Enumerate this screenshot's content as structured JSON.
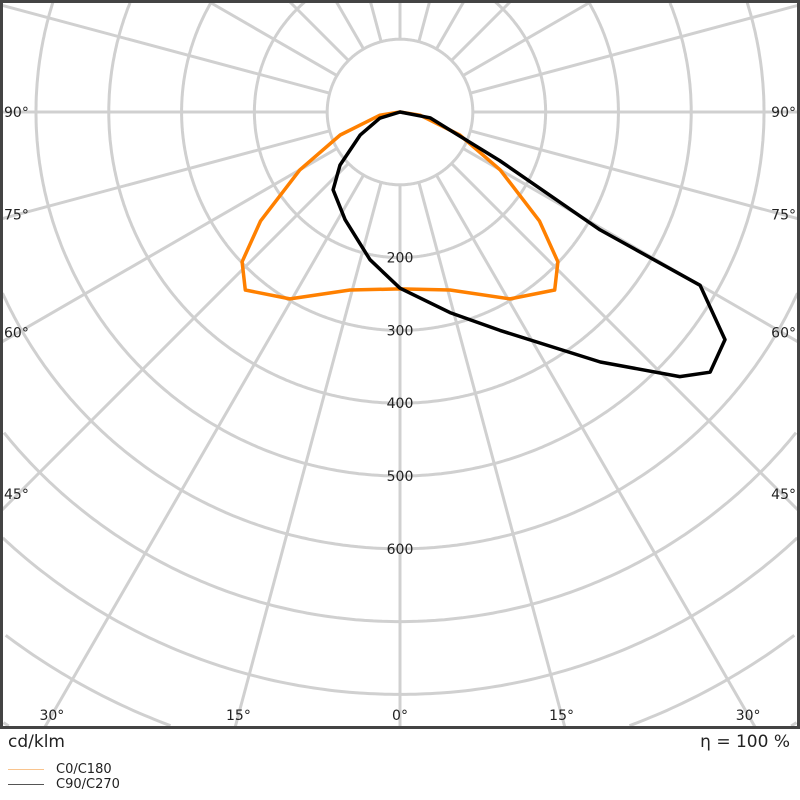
{
  "chart_data": {
    "type": "polar",
    "unit_label": "cd/klm",
    "efficiency_label": "η = 100 %",
    "radial_ticks": [
      200,
      300,
      400,
      500,
      600
    ],
    "radial_grid_step": 100,
    "angle_grid_step_deg": 15,
    "angle_labels_side": [
      "90°",
      "75°",
      "60°",
      "45°"
    ],
    "angle_labels_bottom": [
      "30°",
      "15°",
      "0°",
      "15°",
      "30°"
    ],
    "grid": true,
    "legend_position": "bottom-left",
    "series": [
      {
        "name": "C0/C180",
        "color": "#ff8000",
        "legend_color": "#f9c48e",
        "gamma_deg": [
          -90,
          -81,
          -69,
          -60,
          -52,
          -46.5,
          -41,
          -30.5,
          -15.7,
          0,
          15.7,
          30.5,
          41,
          46.5,
          52,
          60,
          69,
          81,
          90
        ],
        "intensity": [
          0,
          28,
          88,
          159,
          243,
          299,
          324,
          298,
          254,
          243,
          254,
          298,
          324,
          299,
          243,
          159,
          88,
          28,
          0
        ]
      },
      {
        "name": "C90/C270",
        "color": "#000000",
        "legend_color": "#555555",
        "gamma_deg": [
          -90,
          -73,
          -60,
          -48.5,
          -40.7,
          -27,
          -11.5,
          0,
          14,
          24.6,
          38.7,
          46.6,
          50,
          55,
          60,
          59.5,
          64,
          79,
          90
        ],
        "intensity": [
          0,
          29,
          63,
          110,
          141,
          166,
          207,
          242,
          284,
          330,
          440,
          529,
          556,
          545,
          476,
          319,
          152,
          42,
          0
        ]
      }
    ]
  }
}
